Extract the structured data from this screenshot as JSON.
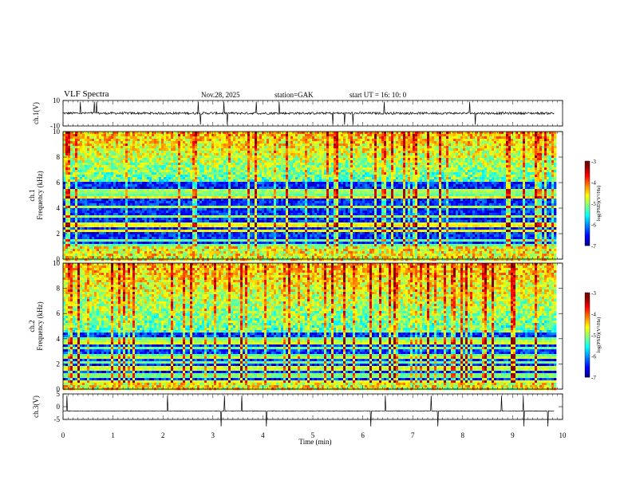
{
  "header": {
    "title": "VLF  Spectra",
    "date": "Nov.28,  2025",
    "station": "station=GAK",
    "start_ut": "start  UT  =   16: 10: 0"
  },
  "chart_data": [
    {
      "type": "line",
      "name": "ch1-waveform",
      "ylabel": "ch.1(V)",
      "ylim": [
        -10,
        10
      ],
      "yticks": [
        "10",
        "-10"
      ],
      "xlim": [
        0,
        10
      ],
      "baseline": 0,
      "noise_amplitude": 3,
      "data_extent": [
        0,
        9.83
      ]
    },
    {
      "type": "heatmap",
      "name": "ch1-spectrogram",
      "ylabel": "ch.1\nFrequency  (kHz)",
      "ylim": [
        0,
        10
      ],
      "yticks": [
        "0",
        "2",
        "4",
        "6",
        "8",
        "10"
      ],
      "xlim": [
        0,
        10
      ],
      "data_extent": [
        0,
        9.83
      ],
      "colorbar": {
        "label": "log(PSD)(V²/Hz)",
        "range": [
          -7,
          -3
        ],
        "ticks": [
          "-3",
          "-4",
          "-5",
          "-6",
          "-7"
        ]
      },
      "profile": {
        "low_cutoff_khz": 1.0,
        "quiet_band_khz": [
          1.0,
          6.0
        ],
        "active_band_khz": [
          6.0,
          10.0
        ]
      }
    },
    {
      "type": "heatmap",
      "name": "ch2-spectrogram",
      "ylabel": "ch.2\nFrequency  (kHz)",
      "ylim": [
        0,
        10
      ],
      "yticks": [
        "0",
        "2",
        "4",
        "6",
        "8",
        "10"
      ],
      "xlim": [
        0,
        10
      ],
      "data_extent": [
        0,
        9.83
      ],
      "colorbar": {
        "label": "log(PSD)(V²/Hz)",
        "range": [
          -7,
          -3
        ],
        "ticks": [
          "-3",
          "-4",
          "-5",
          "-6",
          "-7"
        ]
      },
      "profile": {
        "low_cutoff_khz": 0.5,
        "quiet_band_khz": [
          0.5,
          4.5
        ],
        "active_band_khz": [
          4.5,
          10.0
        ]
      }
    },
    {
      "type": "line",
      "name": "ch3-waveform",
      "ylabel": "ch.3(V)",
      "ylim": [
        -5,
        5
      ],
      "yticks": [
        "5",
        "0",
        "-5"
      ],
      "xlim": [
        0,
        10
      ],
      "baseline": -1.7,
      "noise_amplitude": 0.4,
      "data_extent": [
        0,
        9.83
      ],
      "xlabel": "Time  (min)",
      "xticks": [
        "0",
        "1",
        "2",
        "3",
        "4",
        "5",
        "6",
        "7",
        "8",
        "9",
        "10"
      ]
    }
  ]
}
